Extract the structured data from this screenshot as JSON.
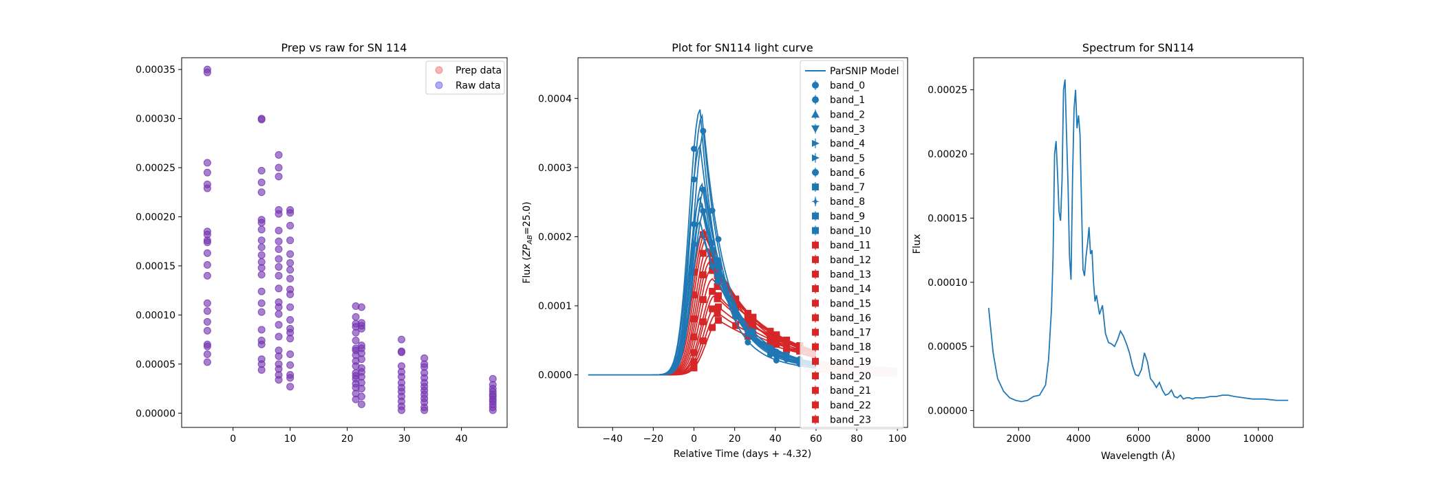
{
  "chart_data": [
    {
      "type": "scatter",
      "title": "Prep vs raw for SN 114",
      "xlabel": "",
      "ylabel": "",
      "xlim": [
        -9,
        48
      ],
      "ylim": [
        -1.45e-05,
        0.000362
      ],
      "xticks": [
        0,
        10,
        20,
        30,
        40
      ],
      "xtick_labels": [
        "0",
        "10",
        "20",
        "30",
        "40"
      ],
      "yticks": [
        0,
        5e-05,
        0.0001,
        0.00015,
        0.0002,
        0.00025,
        0.0003,
        0.00035
      ],
      "ytick_labels": [
        "0.00000",
        "0.00005",
        "0.00010",
        "0.00015",
        "0.00020",
        "0.00025",
        "0.00030",
        "0.00035"
      ],
      "legend_position": "top-right",
      "series": [
        {
          "name": "Prep data",
          "color": "#e8494a",
          "alpha": 0.4
        },
        {
          "name": "Raw data",
          "color": "#3a2ce8",
          "alpha": 0.4
        }
      ],
      "groups": [
        {
          "x": -4.5,
          "y": [
            0.00035,
            0.000347,
            0.000255,
            0.000245,
            0.000233,
            0.000229,
            0.000185,
            0.000182,
            0.000176,
            0.000174,
            0.000163,
            0.000151,
            0.00014,
            0.000112,
            0.000104,
            9.3e-05,
            8.4e-05,
            7e-05,
            6.8e-05,
            6e-05,
            5.2e-05
          ]
        },
        {
          "x": 5,
          "y": [
            0.0003,
            0.000299,
            0.000247,
            0.000235,
            0.000225,
            0.000197,
            0.000194,
            0.000187,
            0.000176,
            0.000169,
            0.000161,
            0.000154,
            0.000148,
            0.000141,
            0.000124,
            0.000112,
            0.000103,
            8.5e-05,
            7.4e-05,
            7e-05,
            5.5e-05,
            5e-05,
            4.4e-05
          ]
        },
        {
          "x": 8,
          "y": [
            0.000263,
            0.00025,
            0.000241,
            0.000207,
            0.000203,
            0.000186,
            0.000175,
            0.000167,
            0.000157,
            0.000149,
            0.00014,
            0.000127,
            0.000113,
            0.000108,
            0.000101,
            9e-05,
            7.8e-05,
            6.4e-05,
            5.8e-05,
            5e-05,
            4.5e-05,
            3.9e-05,
            3.4e-05
          ]
        },
        {
          "x": 10,
          "y": [
            0.000207,
            0.000204,
            0.000191,
            0.000176,
            0.000162,
            0.000153,
            0.000146,
            0.000137,
            0.000126,
            0.000121,
            0.000108,
            9.5e-05,
            8.6e-05,
            8.2e-05,
            7.6e-05,
            6e-05,
            4.9e-05,
            3.9e-05,
            3.6e-05,
            2.7e-05
          ]
        },
        {
          "x": 21.5,
          "y": [
            0.000109,
            9.8e-05,
            9.1e-05,
            8.8e-05,
            8.2e-05,
            7.4e-05,
            6.6e-05,
            6.4e-05,
            5.9e-05,
            5.3e-05,
            4.8e-05,
            4.1e-05,
            3.8e-05,
            3.5e-05,
            3e-05,
            2.6e-05,
            2e-05,
            1.4e-05
          ]
        },
        {
          "x": 22.5,
          "y": [
            0.000108,
            9.2e-05,
            8.9e-05,
            8.6e-05,
            6.9e-05,
            6.6e-05,
            6.1e-05,
            5.5e-05,
            4.6e-05,
            4.2e-05,
            3.7e-05,
            3.1e-05,
            2.5e-05,
            1.7e-05,
            9e-06
          ]
        },
        {
          "x": 29.5,
          "y": [
            7.5e-05,
            6.3e-05,
            6.2e-05,
            4.8e-05,
            4.2e-05,
            3.7e-05,
            3.1e-05,
            2.6e-05,
            2.2e-05,
            1.7e-05,
            1.2e-05,
            7e-06,
            3e-06
          ]
        },
        {
          "x": 33.5,
          "y": [
            5.6e-05,
            5e-05,
            4.7e-05,
            4.1e-05,
            3.6e-05,
            3.1e-05,
            2.7e-05,
            2.3e-05,
            1.9e-05,
            1.5e-05,
            1.1e-05,
            6e-06,
            3e-06
          ]
        },
        {
          "x": 45.5,
          "y": [
            3.5e-05,
            2.9e-05,
            2.5e-05,
            2.2e-05,
            1.9e-05,
            1.7e-05,
            1.4e-05,
            1.2e-05,
            9e-06,
            6e-06,
            3e-06
          ]
        }
      ]
    },
    {
      "type": "line",
      "title": "Plot for SN114 light curve",
      "xlabel": "Relative Time (days + -4.32)",
      "ylabel": "Flux (ZP_AB=25.0)",
      "xlim": [
        -57,
        105
      ],
      "ylim": [
        -7.6e-05,
        0.000459
      ],
      "xticks": [
        -40,
        -20,
        0,
        20,
        40,
        60,
        80,
        100
      ],
      "xtick_labels": [
        "−40",
        "−20",
        "0",
        "20",
        "40",
        "60",
        "80",
        "100"
      ],
      "yticks": [
        0,
        0.0001,
        0.0002,
        0.0003,
        0.0004
      ],
      "ytick_labels": [
        "0.0000",
        "0.0001",
        "0.0002",
        "0.0003",
        "0.0004"
      ],
      "legend_position": "right",
      "model_label": "ParSNIP Model",
      "band_labels": [
        "band_0",
        "band_1",
        "band_2",
        "band_3",
        "band_4",
        "band_5",
        "band_6",
        "band_7",
        "band_8",
        "band_9",
        "band_10",
        "band_11",
        "band_12",
        "band_13",
        "band_14",
        "band_15",
        "band_16",
        "band_17",
        "band_18",
        "band_19",
        "band_20",
        "band_21",
        "band_22",
        "band_23"
      ],
      "blue_bands": 11,
      "colors": {
        "blue": "#1f77b4",
        "red": "#d62728"
      },
      "blue_peaks": [
        0.000384,
        0.000375,
        0.000353,
        0.000332,
        0.000276,
        0.000268,
        0.000256,
        0.000247,
        0.000237,
        0.000222,
        0.000205
      ],
      "red_peaks": [
        0.00021,
        0.000204,
        0.000197,
        0.000184,
        0.000173,
        0.000164,
        0.000153,
        0.000139,
        0.000122,
        0.000115,
        0.000101,
        9e-05,
        7.9e-05
      ]
    },
    {
      "type": "line",
      "title": "Spectrum for SN114",
      "xlabel": "Wavelength (Å)",
      "ylabel": "Flux",
      "xlim": [
        500,
        11500
      ],
      "ylim": [
        -1.31e-05,
        0.000275
      ],
      "xticks": [
        2000,
        4000,
        6000,
        8000,
        10000
      ],
      "xtick_labels": [
        "2000",
        "4000",
        "6000",
        "8000",
        "10000"
      ],
      "yticks": [
        0,
        5e-05,
        0.0001,
        0.00015,
        0.0002,
        0.00025
      ],
      "ytick_labels": [
        "0.00000",
        "0.00005",
        "0.00010",
        "0.00015",
        "0.00020",
        "0.00025"
      ],
      "color": "#1f77b4",
      "x": [
        1000,
        1150,
        1300,
        1500,
        1700,
        1900,
        2100,
        2300,
        2500,
        2700,
        2900,
        3000,
        3100,
        3150,
        3200,
        3250,
        3300,
        3350,
        3400,
        3450,
        3500,
        3550,
        3600,
        3650,
        3700,
        3750,
        3800,
        3850,
        3900,
        3950,
        4000,
        4050,
        4100,
        4150,
        4200,
        4250,
        4300,
        4350,
        4400,
        4450,
        4500,
        4550,
        4600,
        4700,
        4800,
        4900,
        5000,
        5100,
        5200,
        5300,
        5400,
        5500,
        5600,
        5700,
        5800,
        5900,
        6000,
        6100,
        6200,
        6300,
        6400,
        6500,
        6600,
        6700,
        6800,
        6900,
        7000,
        7100,
        7200,
        7300,
        7400,
        7500,
        7600,
        7700,
        7800,
        7900,
        8000,
        8200,
        8400,
        8600,
        8800,
        9000,
        9200,
        9500,
        9800,
        10200,
        10600,
        11000
      ],
      "y": [
        8e-05,
        4.5e-05,
        2.5e-05,
        1.5e-05,
        1e-05,
        8e-06,
        7e-06,
        8e-06,
        1.1e-05,
        1.2e-05,
        2e-05,
        4e-05,
        8e-05,
        0.00012,
        0.0002,
        0.00021,
        0.000185,
        0.000155,
        0.000148,
        0.00018,
        0.00025,
        0.000258,
        0.000215,
        0.000175,
        0.00012,
        0.000102,
        0.00018,
        0.000235,
        0.00025,
        0.00022,
        0.00023,
        0.000215,
        0.00016,
        0.00011,
        0.000105,
        0.00012,
        0.00013,
        0.000143,
        0.000122,
        0.000125,
        0.0001,
        8.5e-05,
        9e-05,
        7.5e-05,
        8.2e-05,
        6e-05,
        5.3e-05,
        5.2e-05,
        5e-05,
        5.5e-05,
        6.2e-05,
        5.8e-05,
        5.2e-05,
        4.5e-05,
        3.5e-05,
        2.8e-05,
        2.7e-05,
        3.2e-05,
        4.5e-05,
        3.8e-05,
        2.5e-05,
        2.2e-05,
        1.8e-05,
        2.2e-05,
        1.6e-05,
        1.2e-05,
        1.3e-05,
        1.6e-05,
        1.1e-05,
        1e-05,
        1.2e-05,
        9e-06,
        1e-05,
        1e-05,
        9e-06,
        1e-05,
        1e-05,
        1e-05,
        1.1e-05,
        1.1e-05,
        1.2e-05,
        1.2e-05,
        1.1e-05,
        1e-05,
        9e-06,
        9e-06,
        8e-06,
        8e-06
      ]
    }
  ]
}
